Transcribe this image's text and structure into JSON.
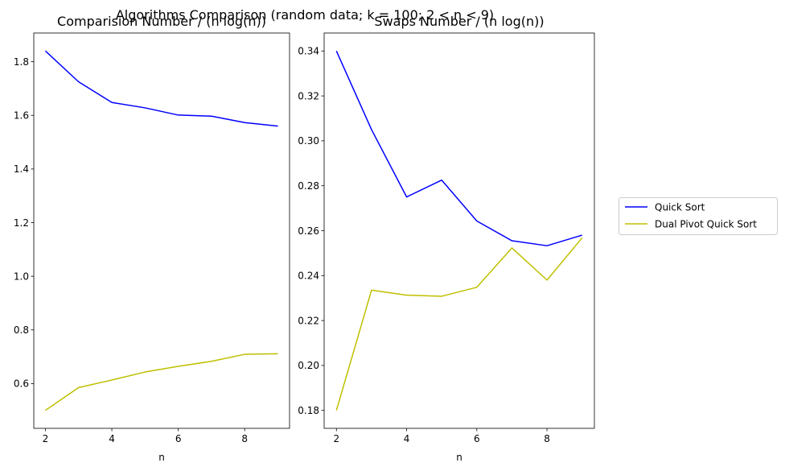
{
  "figure": {
    "suptitle": "Algorithms Comparison (random data;  k = 100;  2 < n < 9)"
  },
  "legend": {
    "placement": "center-right",
    "entries": [
      {
        "label": "Quick Sort",
        "color": "#0000ff"
      },
      {
        "label": "Dual Pivot Quick Sort",
        "color": "#bfbf00"
      }
    ]
  },
  "chart_data": [
    {
      "type": "line",
      "title": "Comparision Number / (n log(n))",
      "xlabel": "n",
      "ylabel": "",
      "x": [
        2,
        3,
        4,
        5,
        6,
        7,
        8,
        9
      ],
      "xlim": [
        1.65,
        9.35
      ],
      "ylim": [
        0.433,
        1.907
      ],
      "xticks": [
        2,
        4,
        6,
        8
      ],
      "yticks": [
        0.6,
        0.8,
        1.0,
        1.2,
        1.4,
        1.6,
        1.8
      ],
      "ytick_labels": [
        "0.6",
        "0.8",
        "1.0",
        "1.2",
        "1.4",
        "1.6",
        "1.8"
      ],
      "grid": false,
      "series": [
        {
          "name": "Quick Sort",
          "color": "#0000ff",
          "values": [
            1.84,
            1.725,
            1.648,
            1.628,
            1.601,
            1.597,
            1.573,
            1.56
          ]
        },
        {
          "name": "Dual Pivot Quick Sort",
          "color": "#bfbf00",
          "values": [
            0.5,
            0.585,
            0.613,
            0.643,
            0.664,
            0.683,
            0.709,
            0.711
          ]
        }
      ]
    },
    {
      "type": "line",
      "title": "Swaps Number / (n log(n))",
      "xlabel": "n",
      "ylabel": "",
      "x": [
        2,
        3,
        4,
        5,
        6,
        7,
        8,
        9
      ],
      "xlim": [
        1.65,
        9.35
      ],
      "ylim": [
        0.172,
        0.348
      ],
      "xticks": [
        2,
        4,
        6,
        8
      ],
      "yticks": [
        0.18,
        0.2,
        0.22,
        0.24,
        0.26,
        0.28,
        0.3,
        0.32,
        0.34
      ],
      "ytick_labels": [
        "0.18",
        "0.20",
        "0.22",
        "0.24",
        "0.26",
        "0.28",
        "0.30",
        "0.32",
        "0.34"
      ],
      "grid": false,
      "series": [
        {
          "name": "Quick Sort",
          "color": "#0000ff",
          "values": [
            0.34,
            0.305,
            0.275,
            0.2825,
            0.2643,
            0.2555,
            0.2533,
            0.258
          ]
        },
        {
          "name": "Dual Pivot Quick Sort",
          "color": "#bfbf00",
          "values": [
            0.18,
            0.2335,
            0.2313,
            0.2308,
            0.2348,
            0.2523,
            0.238,
            0.2568
          ]
        }
      ]
    }
  ]
}
